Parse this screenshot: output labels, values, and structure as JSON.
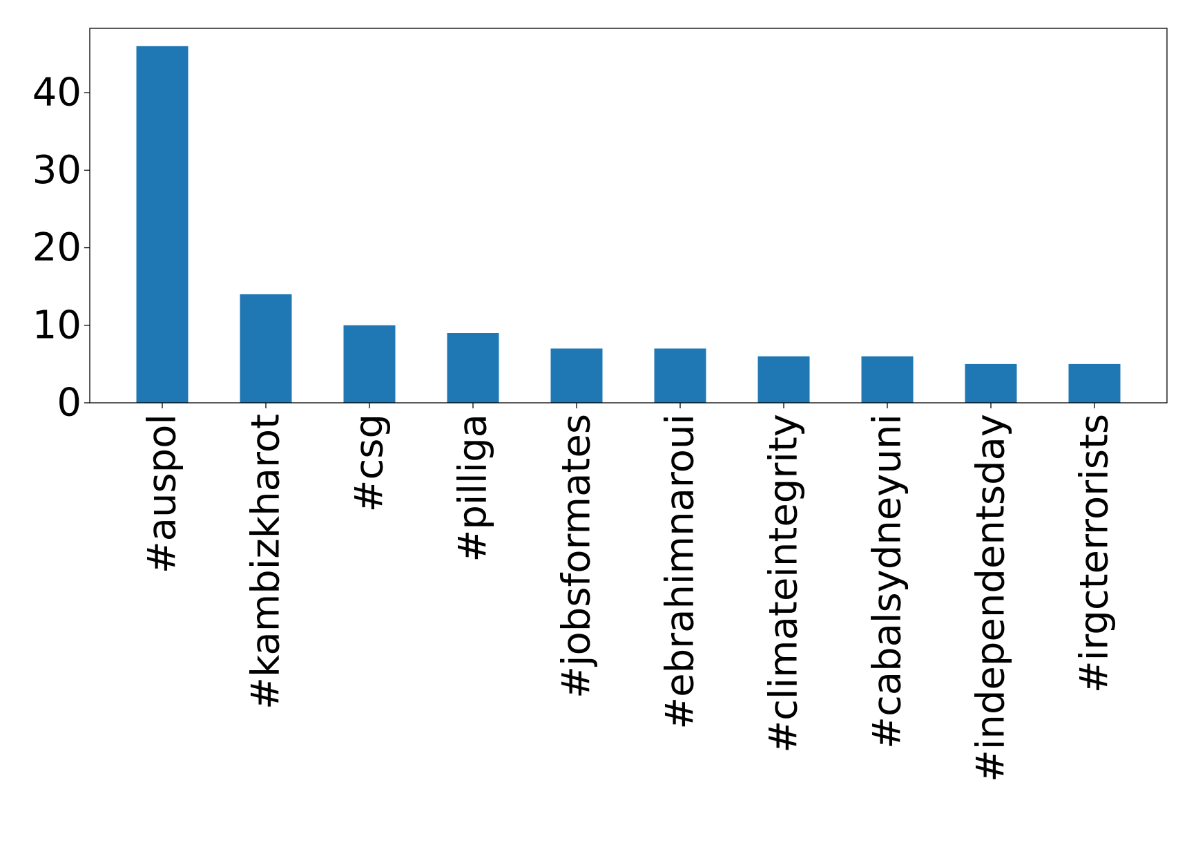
{
  "chart_data": {
    "type": "bar",
    "categories": [
      "#auspol",
      "#kambizkharot",
      "#csg",
      "#pilliga",
      "#jobsformates",
      "#ebrahimnaroui",
      "#climateintegrity",
      "#cabalsydneyuni",
      "#independentsday",
      "#irgcterrorists"
    ],
    "values": [
      46,
      14,
      10,
      9,
      7,
      7,
      6,
      6,
      5,
      5
    ],
    "title": "",
    "xlabel": "",
    "ylabel": "",
    "ylim": [
      0,
      48.3
    ],
    "yticks": [
      0,
      10,
      20,
      30,
      40
    ],
    "bar_color": "#1f77b4",
    "grid": false,
    "legend": "none"
  }
}
